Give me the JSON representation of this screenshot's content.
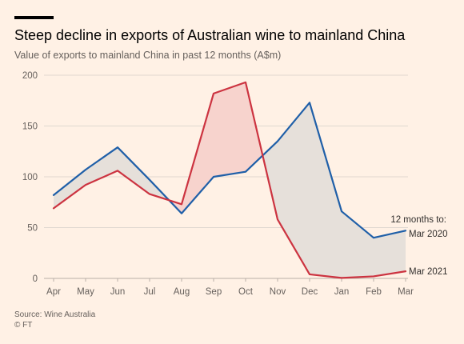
{
  "header": {
    "title": "Steep decline in exports of Australian wine to mainland China",
    "subtitle": "Value of exports to mainland China in past 12 months (A$m)"
  },
  "footer": {
    "source": "Source: Wine Australia",
    "credit": "© FT"
  },
  "colors": {
    "background": "#fff1e5",
    "series_2020": "#1f5fa8",
    "series_2021": "#cc3340",
    "fill_decline": "#e6e0da",
    "fill_increase": "#f7d3cd",
    "grid": "#e0d8d0"
  },
  "chart_data": {
    "type": "line",
    "title": "Steep decline in exports of Australian wine to mainland China",
    "subtitle": "Value of exports to mainland China in past 12 months (A$m)",
    "categories": [
      "Apr",
      "May",
      "Jun",
      "Jul",
      "Aug",
      "Sep",
      "Oct",
      "Nov",
      "Dec",
      "Jan",
      "Feb",
      "Mar"
    ],
    "yticks": [
      0,
      50,
      100,
      150,
      200
    ],
    "ylim": [
      0,
      200
    ],
    "grid": true,
    "legend_title": "12 months to:",
    "series": [
      {
        "name": "Mar 2020",
        "values": [
          82,
          107,
          129,
          97,
          64,
          100,
          105,
          135,
          173,
          66,
          40,
          47
        ]
      },
      {
        "name": "Mar 2021",
        "values": [
          69,
          92,
          106,
          83,
          73,
          182,
          193,
          58,
          4,
          0.5,
          2,
          7
        ]
      }
    ]
  }
}
